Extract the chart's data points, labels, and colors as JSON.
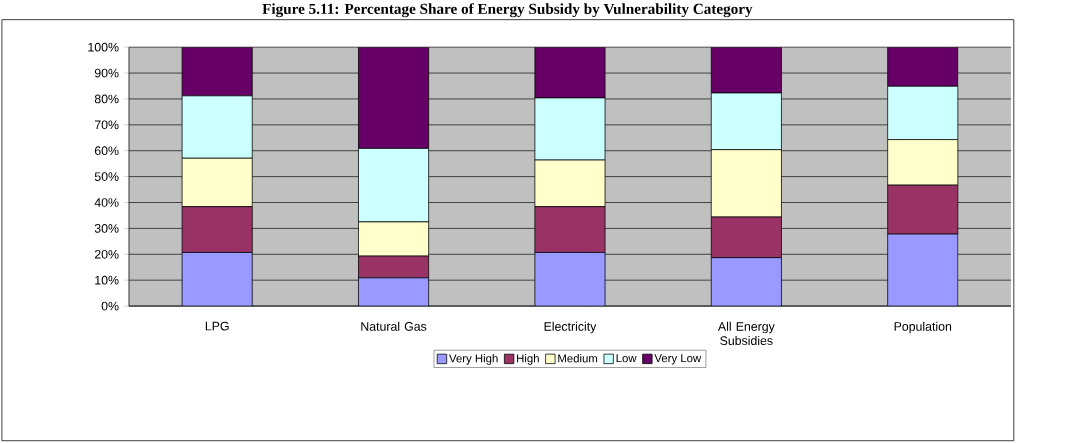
{
  "chart_data": {
    "type": "bar",
    "stacked": true,
    "title": "Figure 5.11: Percentage Share of Energy Subsidy by Vulnerability Category",
    "categories": [
      "LPG",
      "Natural Gas",
      "Electricity",
      "All Energy Subsidies",
      "Population"
    ],
    "series": [
      {
        "name": "Very High",
        "color": "#9999ff",
        "values": [
          20.7,
          10.9,
          20.7,
          18.7,
          27.8
        ]
      },
      {
        "name": "High",
        "color": "#993366",
        "values": [
          17.7,
          8.4,
          17.7,
          15.7,
          18.9
        ]
      },
      {
        "name": "Medium",
        "color": "#ffffcc",
        "values": [
          18.7,
          13.2,
          18.0,
          26.0,
          17.6
        ]
      },
      {
        "name": "Low",
        "color": "#ccffff",
        "values": [
          24.1,
          28.4,
          24.0,
          21.9,
          20.6
        ]
      },
      {
        "name": "Very Low",
        "color": "#660066",
        "values": [
          18.8,
          39.1,
          19.6,
          17.7,
          15.1
        ]
      }
    ],
    "ylim": [
      0,
      100
    ],
    "yticks": [
      {
        "value": 0,
        "label": "0%"
      },
      {
        "value": 10,
        "label": "10%"
      },
      {
        "value": 20,
        "label": "20%"
      },
      {
        "value": 30,
        "label": "30%"
      },
      {
        "value": 40,
        "label": "40%"
      },
      {
        "value": 50,
        "label": "50%"
      },
      {
        "value": 60,
        "label": "60%"
      },
      {
        "value": 70,
        "label": "70%"
      },
      {
        "value": 80,
        "label": "80%"
      },
      {
        "value": 90,
        "label": "90%"
      },
      {
        "value": 100,
        "label": "100%"
      }
    ],
    "grid": "y",
    "legend": "bottom"
  }
}
